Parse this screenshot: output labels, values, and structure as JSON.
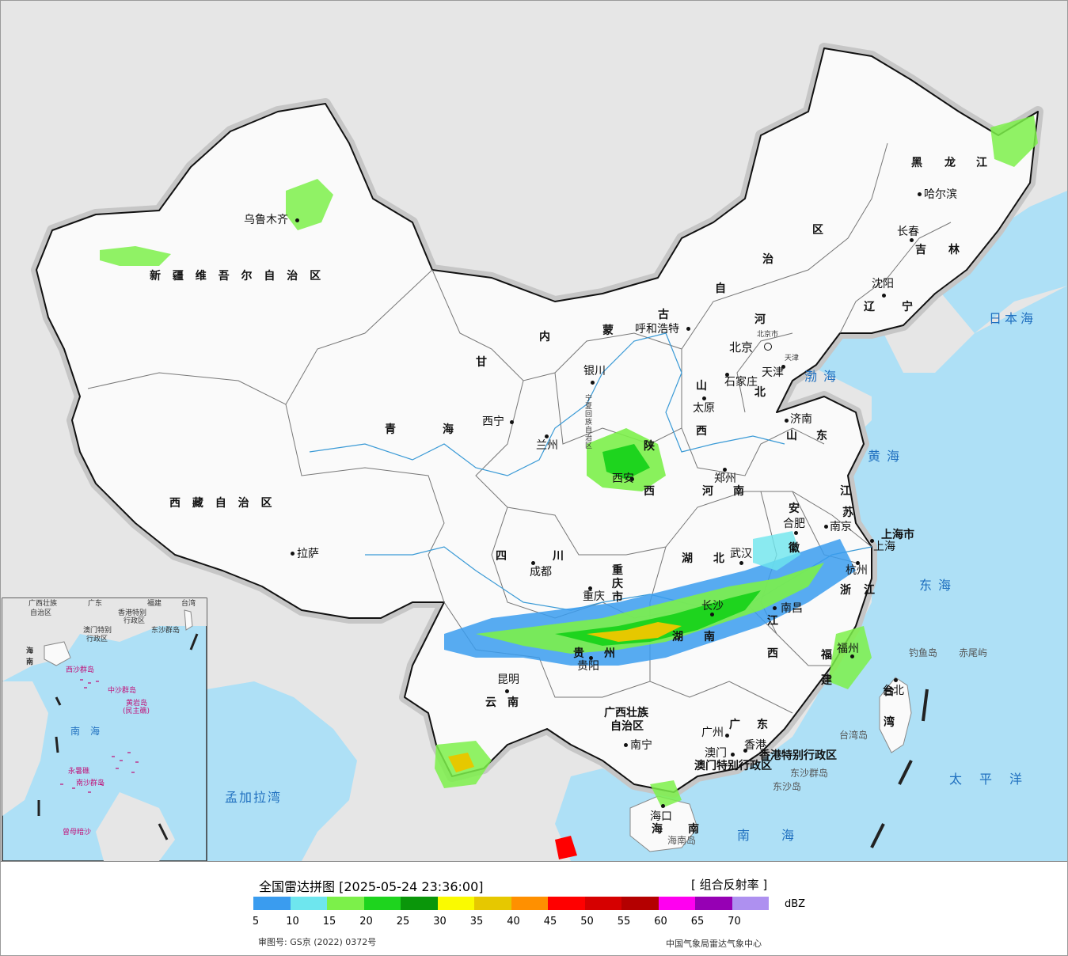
{
  "colors": {
    "ocean": "#aee0f6",
    "land_foreign": "#e6e6e6",
    "land_china": "#fafafa",
    "border_shadow": "#c8c8c8",
    "border": "#111111",
    "river": "#3a9ad6",
    "sea_label": "#1f6fbf"
  },
  "regions": {
    "xinjiang": "新 疆 维 吾 尔 自 治 区",
    "xizang": "西 藏 自 治 区",
    "qinghai_a": "青",
    "qinghai_b": "海",
    "gansu": "甘",
    "sichuan_a": "四",
    "sichuan_b": "川",
    "yunnan_a": "云",
    "yunnan_b": "南",
    "guangxi_a": "广西壮族",
    "guangxi_b": "自治区",
    "guangdong_a": "广",
    "guangdong_b": "东",
    "hainan_a": "海",
    "hainan_b": "南",
    "neimeng_a": "内",
    "neimeng_b": "蒙",
    "neimeng_c": "古",
    "neimeng_d": "自",
    "neimeng_e": "治",
    "neimeng_f": "区",
    "heilongjiang_a": "黑",
    "heilongjiang_b": "龙",
    "heilongjiang_c": "江",
    "jilin_a": "吉",
    "jilin_b": "林",
    "liaoning_a": "辽",
    "liaoning_b": "宁",
    "hebei_a": "河",
    "hebei_b": "北",
    "shanxi_a": "山",
    "shanxi_b": "西",
    "shaanxi_a": "陕",
    "shaanxi_b": "西",
    "ningxia": "宁夏回族自治区",
    "shandong_a": "山",
    "shandong_b": "东",
    "henan_a": "河",
    "henan_b": "南",
    "jiangsu_a": "江",
    "jiangsu_b": "苏",
    "anhui_a": "安",
    "anhui_b": "徽",
    "hubei_a": "湖",
    "hubei_b": "北",
    "hunan_a": "湖",
    "hunan_b": "南",
    "jiangxi_a": "江",
    "jiangxi_b": "西",
    "zhejiang_a": "浙",
    "zhejiang_b": "江",
    "fujian_a": "福",
    "fujian_b": "建",
    "guizhou_a": "贵",
    "guizhou_b": "州",
    "chongqing": "重庆市",
    "shanghai": "上海市",
    "taiwan_a": "台",
    "taiwan_b": "湾",
    "hongkong": "香港特别行政区",
    "macau": "澳门特别行政区"
  },
  "cities": {
    "urumqi": "乌鲁木齐",
    "lhasa": "拉萨",
    "xining": "西宁",
    "lanzhou": "兰州",
    "yinchuan": "银川",
    "huhehaote": "呼和浩特",
    "beijing": "北京",
    "beijing_small": "北京市",
    "tianjin": "天津",
    "tianjin_small": "天津",
    "shijiazhuang": "石家庄",
    "taiyuan": "太原",
    "jinan": "济南",
    "zhengzhou": "郑州",
    "xian": "西安",
    "hefei": "合肥",
    "nanjing": "南京",
    "shanghai_city": "上海",
    "hangzhou": "杭州",
    "wuhan": "武汉",
    "changsha": "长沙",
    "nanchang": "南昌",
    "fuzhou": "福州",
    "taibei": "台北",
    "chengdu": "成都",
    "chongqing_city": "重庆",
    "guiyang": "贵阳",
    "kunming": "昆明",
    "nanning": "南宁",
    "guangzhou": "广州",
    "hongkong_city": "香港",
    "macau_city": "澳门",
    "haikou": "海口",
    "harbin": "哈尔滨",
    "changchun": "长春",
    "shenyang": "沈阳"
  },
  "seas": {
    "bohai": "渤海",
    "huanghai": "黄海",
    "donghai": "东海",
    "nanhai": "南海",
    "riben": "日本海",
    "taiping": "太平洋",
    "mengjiala": "孟加拉湾"
  },
  "islands": {
    "diaoyu": "钓鱼岛",
    "chiwei": "赤尾屿",
    "taiwan_island": "台湾岛",
    "dongsha": "东沙群岛",
    "dongsha_island": "东沙岛",
    "hainan_island": "海南岛"
  },
  "inset": {
    "hainan_a": "海",
    "hainan_b": "南",
    "guangxi": "广西壮族",
    "guangxi_b": "自治区",
    "guangdong": "广东",
    "fujian": "福建",
    "taiwan": "台湾",
    "hongkong": "香港特别",
    "hongkong_b": "行政区",
    "macau": "澳门特别",
    "macau_b": "行政区",
    "dongsha": "东沙群岛",
    "xisha": "西沙群岛",
    "zhongsha": "中沙群岛",
    "huangyan": "黄岩岛",
    "huangyan_b": "(民主礁)",
    "nansha": "南沙群岛",
    "yongshu": "永暑礁",
    "zengmu": "曾母暗沙",
    "nanhai_a": "南",
    "nanhai_b": "海"
  },
  "legend": {
    "title": "全国雷达拼图 [2025-05-24 23:36:00]",
    "product": "[ 组合反射率 ]",
    "unit": "dBZ",
    "ticks": [
      "5",
      "10",
      "15",
      "20",
      "25",
      "30",
      "35",
      "40",
      "45",
      "50",
      "55",
      "60",
      "65",
      "70"
    ],
    "colors": [
      "#3a9cef",
      "#6ee6ee",
      "#7cf04a",
      "#1ed41e",
      "#0a960a",
      "#fafa00",
      "#e6c800",
      "#ff9000",
      "#ff0000",
      "#d60000",
      "#b40000",
      "#ff00f0",
      "#9600b4",
      "#ae90f0"
    ],
    "approval": "审图号: GS京 (2022) 0372号",
    "producer": "中国气象局雷达气象中心"
  }
}
